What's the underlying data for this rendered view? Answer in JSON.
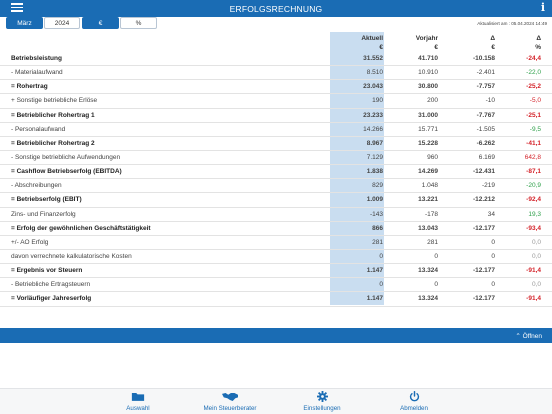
{
  "header": {
    "title": "ERFOLGSRECHNUNG",
    "menu_icon": "menu-icon",
    "info_icon": "info-icon",
    "info_glyph": "i"
  },
  "filters": {
    "month": "März",
    "year": "2024",
    "euro": "€",
    "percent": "%",
    "updated": "Aktualisiert am : 05.04.2024 14:49"
  },
  "columns": {
    "aktuell": "Aktuell",
    "aktuell_unit": "€",
    "vorjahr": "Vorjahr",
    "vorjahr_unit": "€",
    "delta": "Δ",
    "delta_unit": "€",
    "delta_pct": "Δ",
    "delta_pct_unit": "%"
  },
  "rows": [
    {
      "label": "Betriebsleistung",
      "bold": true,
      "aktuell": "31.552",
      "vorjahr": "41.710",
      "delta": "-10.158",
      "pct": "-24,4",
      "tone": "neg"
    },
    {
      "label": "- Materialaufwand",
      "bold": false,
      "aktuell": "8.510",
      "vorjahr": "10.910",
      "delta": "-2.401",
      "pct": "-22,0",
      "tone": "pos"
    },
    {
      "label": "= Rohertrag",
      "bold": true,
      "aktuell": "23.043",
      "vorjahr": "30.800",
      "delta": "-7.757",
      "pct": "-25,2",
      "tone": "neg"
    },
    {
      "label": "+ Sonstige betriebliche Erlöse",
      "bold": false,
      "aktuell": "190",
      "vorjahr": "200",
      "delta": "-10",
      "pct": "-5,0",
      "tone": "neg"
    },
    {
      "label": "= Betrieblicher Rohertrag 1",
      "bold": true,
      "aktuell": "23.233",
      "vorjahr": "31.000",
      "delta": "-7.767",
      "pct": "-25,1",
      "tone": "neg"
    },
    {
      "label": "- Personalaufwand",
      "bold": false,
      "aktuell": "14.266",
      "vorjahr": "15.771",
      "delta": "-1.505",
      "pct": "-9,5",
      "tone": "pos"
    },
    {
      "label": "= Betrieblicher Rohertrag 2",
      "bold": true,
      "aktuell": "8.967",
      "vorjahr": "15.228",
      "delta": "-6.262",
      "pct": "-41,1",
      "tone": "neg"
    },
    {
      "label": "- Sonstige betriebliche Aufwendungen",
      "bold": false,
      "aktuell": "7.129",
      "vorjahr": "960",
      "delta": "6.169",
      "pct": "642,8",
      "tone": "neg"
    },
    {
      "label": "= Cashflow Betriebserfolg (EBITDA)",
      "bold": true,
      "aktuell": "1.838",
      "vorjahr": "14.269",
      "delta": "-12.431",
      "pct": "-87,1",
      "tone": "neg"
    },
    {
      "label": "- Abschreibungen",
      "bold": false,
      "aktuell": "829",
      "vorjahr": "1.048",
      "delta": "-219",
      "pct": "-20,9",
      "tone": "pos"
    },
    {
      "label": "= Betriebserfolg (EBIT)",
      "bold": true,
      "aktuell": "1.009",
      "vorjahr": "13.221",
      "delta": "-12.212",
      "pct": "-92,4",
      "tone": "neg"
    },
    {
      "label": "Zins- und Finanzerfolg",
      "bold": false,
      "aktuell": "-143",
      "vorjahr": "-178",
      "delta": "34",
      "pct": "19,3",
      "tone": "pos"
    },
    {
      "label": "= Erfolg der gewöhnlichen Geschäftstätigkeit",
      "bold": true,
      "aktuell": "866",
      "vorjahr": "13.043",
      "delta": "-12.177",
      "pct": "-93,4",
      "tone": "neg"
    },
    {
      "label": "+/- AO Erfolg",
      "bold": false,
      "aktuell": "281",
      "vorjahr": "281",
      "delta": "0",
      "pct": "0,0",
      "tone": "zero"
    },
    {
      "label": "davon verrechnete kalkulatorische Kosten",
      "bold": false,
      "aktuell": "0",
      "vorjahr": "0",
      "delta": "0",
      "pct": "0,0",
      "tone": "zero"
    },
    {
      "label": "= Ergebnis vor Steuern",
      "bold": true,
      "aktuell": "1.147",
      "vorjahr": "13.324",
      "delta": "-12.177",
      "pct": "-91,4",
      "tone": "neg"
    },
    {
      "label": "- Betriebliche Ertragsteuern",
      "bold": false,
      "aktuell": "0",
      "vorjahr": "0",
      "delta": "0",
      "pct": "0,0",
      "tone": "zero"
    },
    {
      "label": "= Vorläufiger Jahreserfolg",
      "bold": true,
      "aktuell": "1.147",
      "vorjahr": "13.324",
      "delta": "-12.177",
      "pct": "-91,4",
      "tone": "neg"
    }
  ],
  "panel": {
    "open_label": "⌃ Öffnen"
  },
  "tabbar": [
    {
      "label": "Auswahl",
      "icon": "folder-icon"
    },
    {
      "label": "Mein Steuerberater",
      "icon": "handshake-icon"
    },
    {
      "label": "Einstellungen",
      "icon": "gear-icon"
    },
    {
      "label": "Abmelden",
      "icon": "power-icon"
    }
  ],
  "colors": {
    "accent": "#1a6cb4",
    "highlight_column": "#c9ddf0",
    "negative": "#d4232a",
    "positive": "#2ea04a"
  }
}
